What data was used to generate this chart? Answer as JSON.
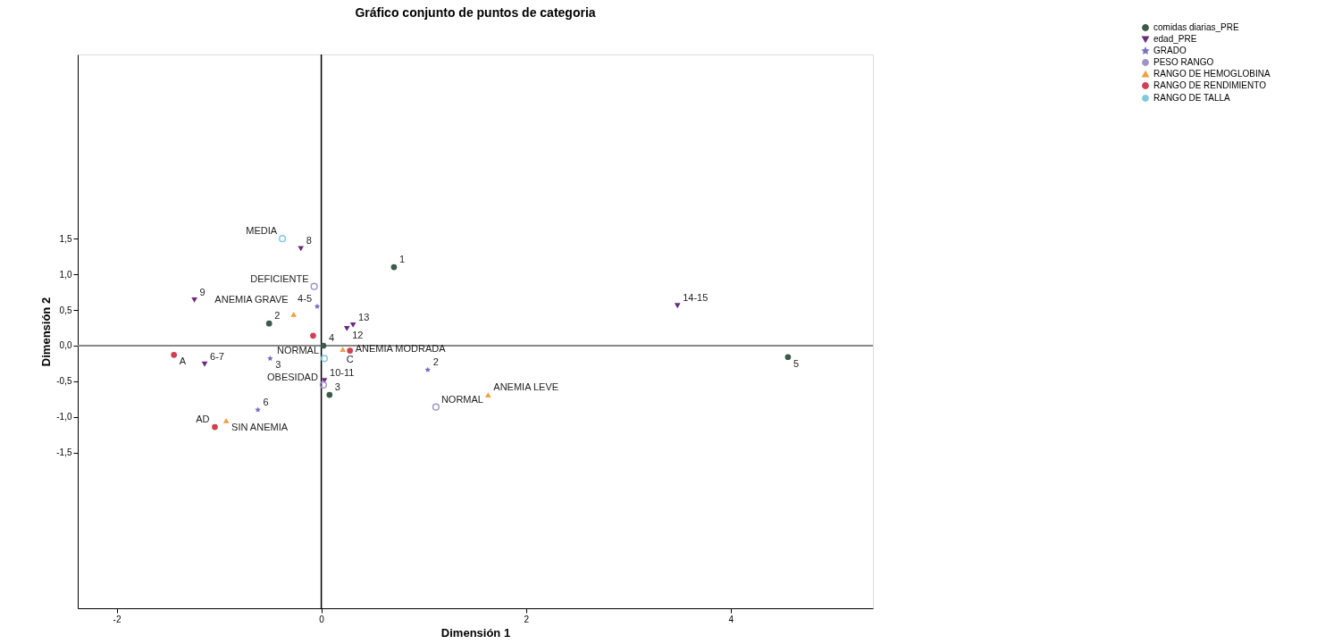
{
  "chart_data": {
    "type": "scatter",
    "title": "Gráfico conjunto de puntos de categoria",
    "xlabel": "Dimensión 1",
    "ylabel": "Dimensión 2",
    "xlim": [
      -2.38,
      5.39
    ],
    "ylim": [
      -3.68,
      4.08
    ],
    "xticks": [
      -2,
      0,
      2,
      4
    ],
    "yticks": [
      {
        "value": 1.5,
        "label": "1,5"
      },
      {
        "value": 1.0,
        "label": "1,0"
      },
      {
        "value": 0.5,
        "label": "0,5"
      },
      {
        "value": 0.0,
        "label": "0,0"
      },
      {
        "value": -0.5,
        "label": "-0,5"
      },
      {
        "value": -1.0,
        "label": "-1,0"
      },
      {
        "value": -1.5,
        "label": "-1,5"
      }
    ],
    "grid": false,
    "legend": "top right",
    "ref_lines": [
      {
        "axis": "x",
        "value": 0
      },
      {
        "axis": "y",
        "value": 0
      }
    ],
    "series": [
      {
        "name": "comidas diarias_PRE",
        "color": "#3c5a4a",
        "marker": "circle",
        "x": [
          0.71,
          -0.51,
          0.08,
          4.56,
          0.02
        ],
        "values": [
          1.1,
          0.31,
          -0.69,
          -0.16,
          0.0
        ]
      },
      {
        "name": "edad_PRE",
        "color": "#6a2c7a",
        "marker": "triangle-down",
        "x": [
          -0.2,
          -1.24,
          0.31,
          0.25,
          -1.14,
          0.03,
          3.48
        ],
        "values": [
          1.36,
          0.64,
          0.29,
          0.24,
          -0.26,
          -0.49,
          0.56
        ]
      },
      {
        "name": "GRADO",
        "color": "#7a70c0",
        "marker": "star",
        "x": [
          1.04,
          -0.5,
          -0.62,
          -0.04
        ],
        "values": [
          -0.34,
          -0.18,
          -0.9,
          0.55
        ]
      },
      {
        "name": "PESO RANGO",
        "color": "#a094c8",
        "marker": "circle-open",
        "x": [
          -0.07,
          1.12,
          0.02
        ],
        "values": [
          0.83,
          -0.86,
          -0.55
        ]
      },
      {
        "name": "RANGO DE HEMOGLOBINA",
        "color": "#f0a040",
        "marker": "triangle",
        "x": [
          -0.27,
          0.21,
          1.63,
          -0.93
        ],
        "values": [
          0.44,
          -0.05,
          -0.69,
          -1.05
        ]
      },
      {
        "name": "RANGO DE RENDIMIENTO",
        "color": "#d04050",
        "marker": "circle",
        "x": [
          -1.44,
          -1.04,
          -0.08,
          0.28
        ],
        "values": [
          -0.13,
          -1.14,
          0.14,
          -0.07
        ]
      },
      {
        "name": "RANGO DE TALLA",
        "color": "#80c8e0",
        "marker": "circle-open",
        "x": [
          -0.38,
          0.03
        ],
        "values": [
          1.5,
          -0.18
        ]
      }
    ],
    "annotations": [
      {
        "text": "1",
        "x": 0.71,
        "y": 1.1
      },
      {
        "text": "2",
        "x": -0.51,
        "y": 0.31
      },
      {
        "text": "3",
        "x": 0.08,
        "y": -0.69
      },
      {
        "text": "5",
        "x": 4.56,
        "y": -0.16
      },
      {
        "text": "4",
        "x": 0.02,
        "y": 0.0
      },
      {
        "text": "8",
        "x": -0.2,
        "y": 1.36
      },
      {
        "text": "9",
        "x": -1.24,
        "y": 0.64
      },
      {
        "text": "13",
        "x": 0.31,
        "y": 0.29
      },
      {
        "text": "12",
        "x": 0.25,
        "y": 0.24
      },
      {
        "text": "6-7",
        "x": -1.14,
        "y": -0.26
      },
      {
        "text": "10-11",
        "x": 0.03,
        "y": -0.49
      },
      {
        "text": "14-15",
        "x": 3.48,
        "y": 0.56
      },
      {
        "text": "2",
        "x": 1.04,
        "y": -0.34
      },
      {
        "text": "3",
        "x": -0.5,
        "y": -0.18
      },
      {
        "text": "6",
        "x": -0.62,
        "y": -0.9
      },
      {
        "text": "4-5",
        "x": -0.04,
        "y": 0.55
      },
      {
        "text": "DEFICIENTE",
        "x": -0.07,
        "y": 0.83
      },
      {
        "text": "NORMAL",
        "x": 1.12,
        "y": -0.86
      },
      {
        "text": "OBESIDAD",
        "x": 0.02,
        "y": -0.55
      },
      {
        "text": "ANEMIA GRAVE",
        "x": -0.27,
        "y": 0.44
      },
      {
        "text": "ANEMIA MODRADA",
        "x": 0.21,
        "y": -0.05
      },
      {
        "text": "ANEMIA LEVE",
        "x": 1.63,
        "y": -0.69
      },
      {
        "text": "SIN ANEMIA",
        "x": -0.93,
        "y": -1.05
      },
      {
        "text": "A",
        "x": -1.44,
        "y": -0.13
      },
      {
        "text": "AD",
        "x": -1.04,
        "y": -1.14
      },
      {
        "text": "C",
        "x": 0.28,
        "y": -0.07
      },
      {
        "text": "MEDIA",
        "x": -0.38,
        "y": 1.5
      },
      {
        "text": "NORMAL",
        "x": 0.03,
        "y": -0.18
      }
    ]
  }
}
